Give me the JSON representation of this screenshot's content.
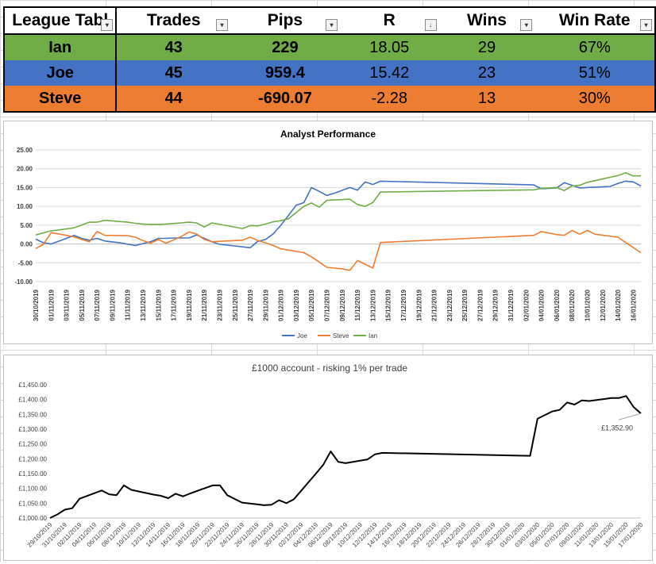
{
  "league_table": {
    "headers": {
      "name": "League Tabl",
      "trades": "Trades",
      "pips": "Pips",
      "r": "R",
      "wins": "Wins",
      "win_rate": "Win Rate"
    },
    "rows": [
      {
        "name": "Ian",
        "trades": "43",
        "pips": "229",
        "r": "18.05",
        "wins": "29",
        "win_rate": "67%",
        "color": "#70ad47"
      },
      {
        "name": "Joe",
        "trades": "45",
        "pips": "959.4",
        "r": "15.42",
        "wins": "23",
        "win_rate": "51%",
        "color": "#4472c4"
      },
      {
        "name": "Steve",
        "trades": "44",
        "pips": "-690.07",
        "r": "-2.28",
        "wins": "13",
        "win_rate": "30%",
        "color": "#ed7d31"
      }
    ]
  },
  "chart_data": [
    {
      "type": "line",
      "title": "Analyst Performance",
      "ylim": [
        -10,
        25
      ],
      "yticks": [
        "25.00",
        "20.00",
        "15.00",
        "10.00",
        "5.00",
        "0.00",
        "-5.00",
        "-10.00"
      ],
      "xlim": [
        "2019-10-30",
        "2020-01-17"
      ],
      "x_tick_labels": [
        "30/10/2019",
        "01/11/2019",
        "03/11/2019",
        "05/11/2019",
        "07/11/2019",
        "09/11/2019",
        "11/11/2019",
        "13/11/2019",
        "15/11/2019",
        "17/11/2019",
        "19/11/2019",
        "21/11/2019",
        "23/11/2019",
        "25/11/2019",
        "27/11/2019",
        "29/11/2019",
        "01/12/2019",
        "03/12/2019",
        "05/12/2019",
        "07/12/2019",
        "09/12/2019",
        "11/12/2019",
        "13/12/2019",
        "15/12/2019",
        "17/12/2019",
        "19/12/2019",
        "21/12/2019",
        "23/12/2019",
        "25/12/2019",
        "27/12/2019",
        "29/12/2019",
        "31/12/2019",
        "02/01/2020",
        "04/01/2020",
        "06/01/2020",
        "08/01/2020",
        "10/01/2020",
        "12/01/2020",
        "14/01/2020",
        "16/01/2020"
      ],
      "legend": "bottom",
      "grid": true,
      "series": [
        {
          "name": "Joe",
          "color": "#4472c4",
          "points": [
            [
              "2019-10-30",
              1.3
            ],
            [
              "2019-10-31",
              0.3
            ],
            [
              "2019-11-01",
              0
            ],
            [
              "2019-11-03",
              1.5
            ],
            [
              "2019-11-04",
              2.3
            ],
            [
              "2019-11-05",
              1.5
            ],
            [
              "2019-11-06",
              1.0
            ],
            [
              "2019-11-07",
              1.5
            ],
            [
              "2019-11-08",
              0.8
            ],
            [
              "2019-11-10",
              0.3
            ],
            [
              "2019-11-12",
              -0.4
            ],
            [
              "2019-11-14",
              0.6
            ],
            [
              "2019-11-15",
              1.5
            ],
            [
              "2019-11-16",
              1.5
            ],
            [
              "2019-11-17",
              1.6
            ],
            [
              "2019-11-19",
              1.6
            ],
            [
              "2019-11-20",
              2.4
            ],
            [
              "2019-11-21",
              1.5
            ],
            [
              "2019-11-22",
              0.6
            ],
            [
              "2019-11-23",
              -0.1
            ],
            [
              "2019-11-24",
              -0.3
            ],
            [
              "2019-11-27",
              -1.0
            ],
            [
              "2019-11-28",
              0.7
            ],
            [
              "2019-11-29",
              1.2
            ],
            [
              "2019-11-30",
              2.7
            ],
            [
              "2019-12-01",
              5.0
            ],
            [
              "2019-12-02",
              7.6
            ],
            [
              "2019-12-03",
              10.3
            ],
            [
              "2019-12-04",
              11.0
            ],
            [
              "2019-12-05",
              15.0
            ],
            [
              "2019-12-06",
              14.0
            ],
            [
              "2019-12-07",
              12.9
            ],
            [
              "2019-12-08",
              13.5
            ],
            [
              "2019-12-10",
              15.0
            ],
            [
              "2019-12-11",
              14.3
            ],
            [
              "2019-12-12",
              16.5
            ],
            [
              "2019-12-13",
              15.8
            ],
            [
              "2019-12-14",
              16.7
            ],
            [
              "2020-01-03",
              15.7
            ],
            [
              "2020-01-04",
              14.7
            ],
            [
              "2020-01-06",
              14.9
            ],
            [
              "2020-01-07",
              16.3
            ],
            [
              "2020-01-08",
              15.6
            ],
            [
              "2020-01-09",
              14.9
            ],
            [
              "2020-01-10",
              15.0
            ],
            [
              "2020-01-13",
              15.3
            ],
            [
              "2020-01-14",
              16.1
            ],
            [
              "2020-01-15",
              16.7
            ],
            [
              "2020-01-16",
              16.5
            ],
            [
              "2020-01-17",
              15.4
            ]
          ]
        },
        {
          "name": "Steve",
          "color": "#ed7d31",
          "points": [
            [
              "2019-10-30",
              -1.2
            ],
            [
              "2019-10-31",
              -0.1
            ],
            [
              "2019-11-01",
              3.0
            ],
            [
              "2019-11-03",
              2.3
            ],
            [
              "2019-11-04",
              1.9
            ],
            [
              "2019-11-05",
              1.2
            ],
            [
              "2019-11-06",
              0.6
            ],
            [
              "2019-11-07",
              3.3
            ],
            [
              "2019-11-08",
              2.3
            ],
            [
              "2019-11-11",
              2.2
            ],
            [
              "2019-11-12",
              1.8
            ],
            [
              "2019-11-13",
              0.9
            ],
            [
              "2019-11-14",
              0.2
            ],
            [
              "2019-11-15",
              1.2
            ],
            [
              "2019-11-16",
              0.2
            ],
            [
              "2019-11-18",
              2.0
            ],
            [
              "2019-11-19",
              3.2
            ],
            [
              "2019-11-20",
              2.6
            ],
            [
              "2019-11-21",
              1.2
            ],
            [
              "2019-11-22",
              0.6
            ],
            [
              "2019-11-26",
              1.0
            ],
            [
              "2019-11-27",
              1.8
            ],
            [
              "2019-11-28",
              0.9
            ],
            [
              "2019-11-29",
              0.3
            ],
            [
              "2019-11-30",
              -0.4
            ],
            [
              "2019-12-01",
              -1.3
            ],
            [
              "2019-12-04",
              -2.3
            ],
            [
              "2019-12-05",
              -3.4
            ],
            [
              "2019-12-06",
              -4.8
            ],
            [
              "2019-12-07",
              -6.2
            ],
            [
              "2019-12-09",
              -6.6
            ],
            [
              "2019-12-10",
              -7.0
            ],
            [
              "2019-12-11",
              -4.4
            ],
            [
              "2019-12-13",
              -6.4
            ],
            [
              "2019-12-14",
              0.4
            ],
            [
              "2020-01-03",
              2.3
            ],
            [
              "2020-01-04",
              3.3
            ],
            [
              "2020-01-06",
              2.5
            ],
            [
              "2020-01-07",
              2.3
            ],
            [
              "2020-01-08",
              3.6
            ],
            [
              "2020-01-09",
              2.6
            ],
            [
              "2020-01-10",
              3.6
            ],
            [
              "2020-01-11",
              2.6
            ],
            [
              "2020-01-14",
              1.8
            ],
            [
              "2020-01-15",
              0.4
            ],
            [
              "2020-01-17",
              -2.3
            ]
          ]
        },
        {
          "name": "Ian",
          "color": "#70ad47",
          "points": [
            [
              "2019-10-30",
              2.4
            ],
            [
              "2019-11-01",
              3.5
            ],
            [
              "2019-11-03",
              4.0
            ],
            [
              "2019-11-04",
              4.3
            ],
            [
              "2019-11-06",
              5.8
            ],
            [
              "2019-11-07",
              5.8
            ],
            [
              "2019-11-08",
              6.3
            ],
            [
              "2019-11-11",
              5.8
            ],
            [
              "2019-11-12",
              5.5
            ],
            [
              "2019-11-13",
              5.3
            ],
            [
              "2019-11-14",
              5.2
            ],
            [
              "2019-11-15",
              5.2
            ],
            [
              "2019-11-16",
              5.3
            ],
            [
              "2019-11-18",
              5.6
            ],
            [
              "2019-11-19",
              5.8
            ],
            [
              "2019-11-20",
              5.6
            ],
            [
              "2019-11-21",
              4.5
            ],
            [
              "2019-11-22",
              5.6
            ],
            [
              "2019-11-26",
              4.1
            ],
            [
              "2019-11-27",
              4.9
            ],
            [
              "2019-11-28",
              4.8
            ],
            [
              "2019-11-29",
              5.3
            ],
            [
              "2019-11-30",
              5.9
            ],
            [
              "2019-12-01",
              6.2
            ],
            [
              "2019-12-02",
              6.7
            ],
            [
              "2019-12-04",
              10.0
            ],
            [
              "2019-12-05",
              10.9
            ],
            [
              "2019-12-06",
              9.8
            ],
            [
              "2019-12-07",
              11.6
            ],
            [
              "2019-12-10",
              11.9
            ],
            [
              "2019-12-11",
              10.5
            ],
            [
              "2019-12-12",
              10.0
            ],
            [
              "2019-12-13",
              11.0
            ],
            [
              "2019-12-14",
              13.8
            ],
            [
              "2020-01-03",
              14.4
            ],
            [
              "2020-01-04",
              14.8
            ],
            [
              "2020-01-06",
              15.0
            ],
            [
              "2020-01-07",
              14.2
            ],
            [
              "2020-01-08",
              15.4
            ],
            [
              "2020-01-09",
              15.6
            ],
            [
              "2020-01-10",
              16.4
            ],
            [
              "2020-01-14",
              18.2
            ],
            [
              "2020-01-15",
              18.9
            ],
            [
              "2020-01-16",
              18.1
            ],
            [
              "2020-01-17",
              18.1
            ]
          ]
        }
      ]
    },
    {
      "type": "line",
      "title": "£1000 account - risking 1% per trade",
      "ylim": [
        1000,
        1450
      ],
      "yticks": [
        "£1,450.00",
        "£1,400.00",
        "£1,350.00",
        "£1,300.00",
        "£1,250.00",
        "£1,200.00",
        "£1,150.00",
        "£1,100.00",
        "£1,050.00",
        "£1,000.00"
      ],
      "xlim": [
        "2019-10-29",
        "2020-01-17"
      ],
      "x_tick_labels": [
        "29/10/2019",
        "31/10/2019",
        "02/11/2019",
        "04/11/2019",
        "06/11/2019",
        "08/11/2019",
        "10/11/2019",
        "12/11/2019",
        "14/11/2019",
        "16/11/2019",
        "18/11/2019",
        "20/11/2019",
        "22/11/2019",
        "24/11/2019",
        "26/11/2019",
        "28/11/2019",
        "30/11/2019",
        "02/12/2019",
        "04/12/2019",
        "06/12/2019",
        "08/12/2019",
        "10/12/2019",
        "12/12/2019",
        "14/12/2019",
        "16/12/2019",
        "18/12/2019",
        "20/12/2019",
        "22/12/2019",
        "24/12/2019",
        "26/12/2019",
        "28/12/2019",
        "30/12/2019",
        "01/01/2020",
        "03/01/2020",
        "05/01/2020",
        "07/01/2020",
        "09/01/2020",
        "11/01/2020",
        "13/01/2020",
        "15/01/2020",
        "17/01/2020"
      ],
      "grid": false,
      "data_label": "£1,352.90",
      "series": [
        {
          "color": "#000000",
          "points": [
            [
              "2019-10-29",
              1000
            ],
            [
              "2019-10-30",
              1012
            ],
            [
              "2019-10-31",
              1028
            ],
            [
              "2019-11-01",
              1033
            ],
            [
              "2019-11-02",
              1065
            ],
            [
              "2019-11-05",
              1093
            ],
            [
              "2019-11-06",
              1080
            ],
            [
              "2019-11-07",
              1077
            ],
            [
              "2019-11-08",
              1110
            ],
            [
              "2019-11-09",
              1095
            ],
            [
              "2019-11-12",
              1079
            ],
            [
              "2019-11-13",
              1075
            ],
            [
              "2019-11-14",
              1067
            ],
            [
              "2019-11-15",
              1082
            ],
            [
              "2019-11-16",
              1073
            ],
            [
              "2019-11-17",
              1083
            ],
            [
              "2019-11-19",
              1101
            ],
            [
              "2019-11-20",
              1110
            ],
            [
              "2019-11-21",
              1110
            ],
            [
              "2019-11-22",
              1077
            ],
            [
              "2019-11-24",
              1052
            ],
            [
              "2019-11-26",
              1046
            ],
            [
              "2019-11-27",
              1043
            ],
            [
              "2019-11-28",
              1045
            ],
            [
              "2019-11-29",
              1060
            ],
            [
              "2019-11-30",
              1050
            ],
            [
              "2019-12-01",
              1063
            ],
            [
              "2019-12-04",
              1150
            ],
            [
              "2019-12-05",
              1180
            ],
            [
              "2019-12-06",
              1225
            ],
            [
              "2019-12-07",
              1190
            ],
            [
              "2019-12-08",
              1185
            ],
            [
              "2019-12-11",
              1198
            ],
            [
              "2019-12-12",
              1215
            ],
            [
              "2019-12-13",
              1220
            ],
            [
              "2020-01-02",
              1210
            ],
            [
              "2020-01-03",
              1335
            ],
            [
              "2020-01-05",
              1360
            ],
            [
              "2020-01-06",
              1365
            ],
            [
              "2020-01-07",
              1390
            ],
            [
              "2020-01-08",
              1383
            ],
            [
              "2020-01-09",
              1397
            ],
            [
              "2020-01-10",
              1395
            ],
            [
              "2020-01-13",
              1405
            ],
            [
              "2020-01-14",
              1405
            ],
            [
              "2020-01-15",
              1412
            ],
            [
              "2020-01-16",
              1375
            ],
            [
              "2020-01-17",
              1352.9
            ]
          ]
        }
      ]
    }
  ]
}
